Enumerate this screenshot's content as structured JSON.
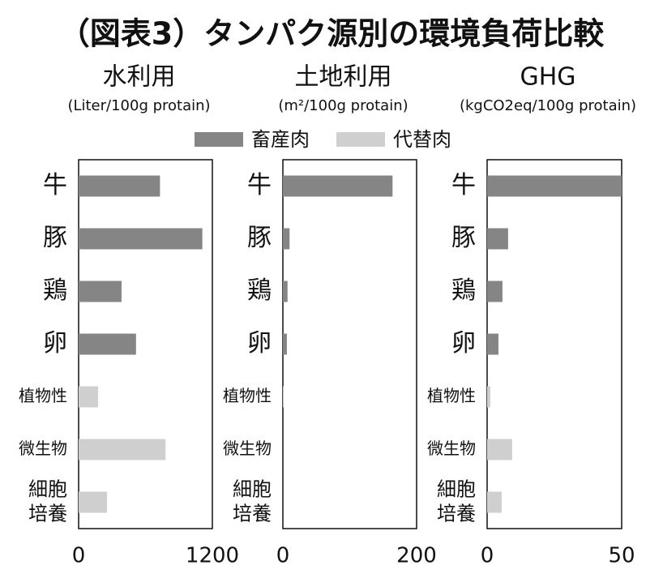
{
  "title": "（図表3）タンパク源別の環境負荷比較",
  "legend": [
    {
      "name": "畜産肉",
      "color": "#858585"
    },
    {
      "name": "代替肉",
      "color": "#cfcfcf"
    }
  ],
  "chart_data": [
    {
      "type": "bar",
      "title": "水利用",
      "subtitle": "(Liter/100g protain)",
      "categories": [
        "牛",
        "豚",
        "鶏",
        "卵",
        "植物性",
        "微生物",
        "細胞\n培養"
      ],
      "series": [
        {
          "values": [
            730,
            1110,
            385,
            515,
            null,
            null,
            null
          ]
        },
        {
          "values": [
            null,
            null,
            null,
            null,
            175,
            780,
            255
          ]
        }
      ],
      "xlim": [
        0,
        1200
      ],
      "xticks": [
        0,
        1200
      ]
    },
    {
      "type": "bar",
      "title": "土地利用",
      "subtitle": "(m²/100g protain)",
      "categories": [
        "牛",
        "豚",
        "鶏",
        "卵",
        "植物性",
        "微生物",
        "細胞\n培養"
      ],
      "series": [
        {
          "values": [
            164,
            10,
            7,
            6,
            null,
            null,
            null
          ]
        },
        {
          "values": [
            null,
            null,
            null,
            null,
            1,
            0,
            0
          ]
        }
      ],
      "xlim": [
        0,
        200
      ],
      "xticks": [
        0,
        200
      ]
    },
    {
      "type": "bar",
      "title": "GHG",
      "subtitle": "(kgCO2eq/100g protain)",
      "categories": [
        "牛",
        "豚",
        "鶏",
        "卵",
        "植物性",
        "微生物",
        "細胞\n培養"
      ],
      "series": [
        {
          "values": [
            50,
            7.8,
            5.7,
            4.2,
            null,
            null,
            null
          ]
        },
        {
          "values": [
            null,
            null,
            null,
            null,
            1.2,
            9.3,
            5.4
          ]
        }
      ],
      "xlim": [
        0,
        50
      ],
      "xticks": [
        0,
        50
      ]
    }
  ]
}
